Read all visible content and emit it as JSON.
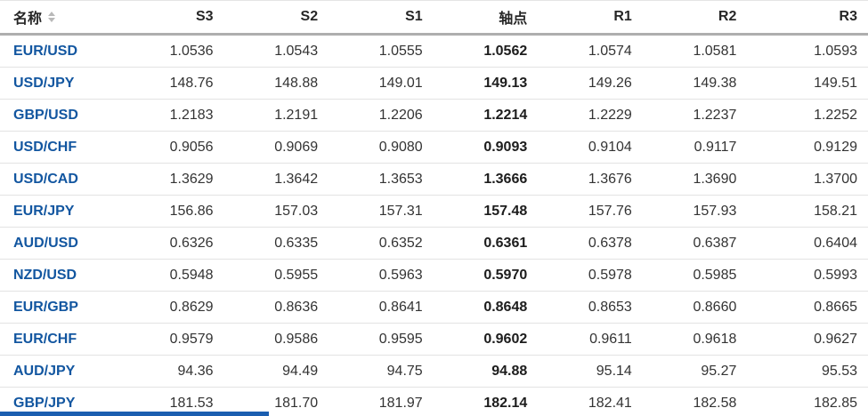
{
  "table": {
    "columns": [
      {
        "id": "name",
        "label": "名称",
        "sortable": true
      },
      {
        "id": "s3",
        "label": "S3"
      },
      {
        "id": "s2",
        "label": "S2"
      },
      {
        "id": "s1",
        "label": "S1"
      },
      {
        "id": "pivot",
        "label": "轴点"
      },
      {
        "id": "r1",
        "label": "R1"
      },
      {
        "id": "r2",
        "label": "R2"
      },
      {
        "id": "r3",
        "label": "R3"
      }
    ],
    "rows": [
      {
        "name": "EUR/USD",
        "s3": "1.0536",
        "s2": "1.0543",
        "s1": "1.0555",
        "pivot": "1.0562",
        "r1": "1.0574",
        "r2": "1.0581",
        "r3": "1.0593"
      },
      {
        "name": "USD/JPY",
        "s3": "148.76",
        "s2": "148.88",
        "s1": "149.01",
        "pivot": "149.13",
        "r1": "149.26",
        "r2": "149.38",
        "r3": "149.51"
      },
      {
        "name": "GBP/USD",
        "s3": "1.2183",
        "s2": "1.2191",
        "s1": "1.2206",
        "pivot": "1.2214",
        "r1": "1.2229",
        "r2": "1.2237",
        "r3": "1.2252"
      },
      {
        "name": "USD/CHF",
        "s3": "0.9056",
        "s2": "0.9069",
        "s1": "0.9080",
        "pivot": "0.9093",
        "r1": "0.9104",
        "r2": "0.9117",
        "r3": "0.9129"
      },
      {
        "name": "USD/CAD",
        "s3": "1.3629",
        "s2": "1.3642",
        "s1": "1.3653",
        "pivot": "1.3666",
        "r1": "1.3676",
        "r2": "1.3690",
        "r3": "1.3700"
      },
      {
        "name": "EUR/JPY",
        "s3": "156.86",
        "s2": "157.03",
        "s1": "157.31",
        "pivot": "157.48",
        "r1": "157.76",
        "r2": "157.93",
        "r3": "158.21"
      },
      {
        "name": "AUD/USD",
        "s3": "0.6326",
        "s2": "0.6335",
        "s1": "0.6352",
        "pivot": "0.6361",
        "r1": "0.6378",
        "r2": "0.6387",
        "r3": "0.6404"
      },
      {
        "name": "NZD/USD",
        "s3": "0.5948",
        "s2": "0.5955",
        "s1": "0.5963",
        "pivot": "0.5970",
        "r1": "0.5978",
        "r2": "0.5985",
        "r3": "0.5993"
      },
      {
        "name": "EUR/GBP",
        "s3": "0.8629",
        "s2": "0.8636",
        "s1": "0.8641",
        "pivot": "0.8648",
        "r1": "0.8653",
        "r2": "0.8660",
        "r3": "0.8665"
      },
      {
        "name": "EUR/CHF",
        "s3": "0.9579",
        "s2": "0.9586",
        "s1": "0.9595",
        "pivot": "0.9602",
        "r1": "0.9611",
        "r2": "0.9618",
        "r3": "0.9627"
      },
      {
        "name": "AUD/JPY",
        "s3": "94.36",
        "s2": "94.49",
        "s1": "94.75",
        "pivot": "94.88",
        "r1": "95.14",
        "r2": "95.27",
        "r3": "95.53"
      },
      {
        "name": "GBP/JPY",
        "s3": "181.53",
        "s2": "181.70",
        "s1": "181.97",
        "pivot": "182.14",
        "r1": "182.41",
        "r2": "182.58",
        "r3": "182.85"
      }
    ]
  },
  "icons": {
    "sort": "sort-arrows-icon"
  },
  "colors": {
    "pair_link": "#1256a0",
    "header_text": "#262626",
    "cell_text": "#333333",
    "pivot_text": "#1c1c1c",
    "header_border": "#aeaeae",
    "row_border": "#e3e3e3",
    "bottom_bar": "#1b5eb0"
  }
}
